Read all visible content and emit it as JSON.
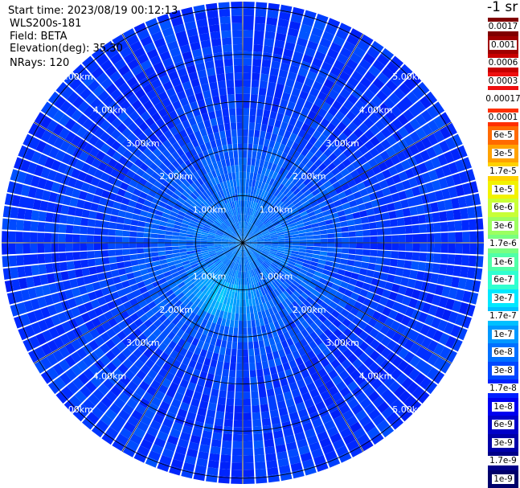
{
  "header": {
    "start_time": "Start time: 2023/08/19 00:12:13",
    "instrument": "WLS200s-181",
    "field": "Field: BETA",
    "elevation": "Elevation(deg): 35.30",
    "nrays": "NRays: 120"
  },
  "colorbar": {
    "unit": "-1 sr",
    "labels": [
      "0.0017",
      "0.001",
      "0.0006",
      "0.0003",
      "0.00017",
      "0.0001",
      "6e-5",
      "3e-5",
      "1.7e-5",
      "1e-5",
      "6e-6",
      "3e-6",
      "1.7e-6",
      "1e-6",
      "6e-7",
      "3e-7",
      "1.7e-7",
      "1e-7",
      "6e-8",
      "3e-8",
      "1.7e-8",
      "1e-8",
      "6e-9",
      "3e-9",
      "1.7e-9",
      "1e-9"
    ],
    "colors": [
      "#800000",
      "#a00000",
      "#c80000",
      "#ee1010",
      "#ffffff",
      "#ff3000",
      "#ff6a00",
      "#ffa200",
      "#ffd200",
      "#f2f200",
      "#c8ff36",
      "#9cff60",
      "#78ff80",
      "#50ffa8",
      "#30ffd0",
      "#00e8ff",
      "#00c0ff",
      "#0098ff",
      "#0070ff",
      "#0048ff",
      "#0020ff",
      "#0000f0",
      "#0000c8",
      "#0000a8",
      "#000088",
      "#00006a"
    ]
  },
  "chart_data": {
    "type": "heatmap",
    "projection": "polar-ppi",
    "nrays": 120,
    "range_rings_km": [
      1,
      2,
      3,
      4,
      5
    ],
    "ring_labels": [
      "1.00km",
      "2.00km",
      "3.00km",
      "4.00km",
      "5.00km"
    ],
    "max_range_km": 5.0,
    "spokes_deg": [
      0,
      30,
      60,
      90,
      120,
      150,
      180,
      210,
      240,
      270,
      300,
      330
    ],
    "field": "BETA",
    "color_scale": "log",
    "value_range": [
      1e-09,
      0.0017
    ],
    "typical_far_range_beta": 3e-08,
    "typical_near_range_beta": 1.7e-07,
    "enhanced_region": {
      "direction": "south-southwest",
      "range_km": [
        0.6,
        1.8
      ],
      "beta": 1e-06
    }
  }
}
